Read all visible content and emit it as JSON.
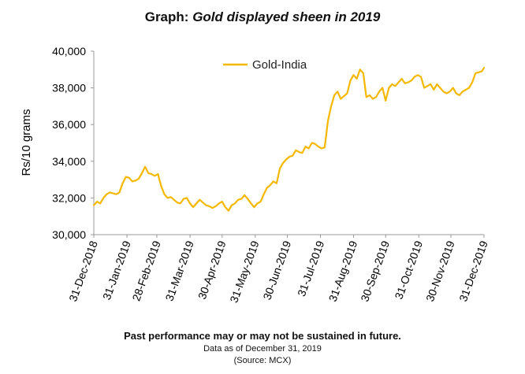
{
  "title": {
    "prefix": "Graph:",
    "emphasis": "Gold displayed sheen in 2019"
  },
  "footer": {
    "disclaimer": "Past performance may or may not be sustained in future.",
    "as_of": "Data as of December 31, 2019",
    "source": "(Source: MCX)"
  },
  "colors": {
    "series": "#F5B800",
    "axis": "#000000"
  },
  "chart_data": {
    "type": "line",
    "title": "Graph: Gold displayed sheen in 2019",
    "xlabel": "",
    "ylabel": "Rs/10 grams",
    "ylim": [
      30000,
      40000
    ],
    "yticks": [
      30000,
      32000,
      34000,
      36000,
      38000,
      40000
    ],
    "ytick_labels": [
      "30,000",
      "32,000",
      "34,000",
      "36,000",
      "38,000",
      "40,000"
    ],
    "xlim": [
      "2018-12-31",
      "2019-12-31"
    ],
    "xtick_labels": [
      "31-Dec-2018",
      "31-Jan-2019",
      "28-Feb-2019",
      "31-Mar-2019",
      "30-Apr-2019",
      "31-May-2019",
      "30-Jun-2019",
      "31-Jul-2019",
      "31-Aug-2019",
      "30-Sep-2019",
      "31-Oct-2019",
      "30-Nov-2019",
      "31-Dec-2019"
    ],
    "xtick_dates": [
      "2018-12-31",
      "2019-01-31",
      "2019-02-28",
      "2019-03-31",
      "2019-04-30",
      "2019-05-31",
      "2019-06-30",
      "2019-07-31",
      "2019-08-31",
      "2019-09-30",
      "2019-10-31",
      "2019-11-30",
      "2019-12-31"
    ],
    "grid": false,
    "legend": "top-center",
    "series": [
      {
        "name": "Gold-India",
        "x": [
          "2018-12-31",
          "2019-01-03",
          "2019-01-06",
          "2019-01-09",
          "2019-01-12",
          "2019-01-15",
          "2019-01-18",
          "2019-01-21",
          "2019-01-24",
          "2019-01-27",
          "2019-01-30",
          "2019-02-02",
          "2019-02-05",
          "2019-02-08",
          "2019-02-11",
          "2019-02-14",
          "2019-02-17",
          "2019-02-20",
          "2019-02-23",
          "2019-02-26",
          "2019-03-01",
          "2019-03-04",
          "2019-03-07",
          "2019-03-10",
          "2019-03-13",
          "2019-03-16",
          "2019-03-19",
          "2019-03-22",
          "2019-03-25",
          "2019-03-28",
          "2019-03-31",
          "2019-04-03",
          "2019-04-06",
          "2019-04-09",
          "2019-04-12",
          "2019-04-15",
          "2019-04-18",
          "2019-04-21",
          "2019-04-24",
          "2019-04-27",
          "2019-04-30",
          "2019-05-03",
          "2019-05-06",
          "2019-05-09",
          "2019-05-12",
          "2019-05-15",
          "2019-05-18",
          "2019-05-21",
          "2019-05-24",
          "2019-05-27",
          "2019-05-30",
          "2019-06-02",
          "2019-06-05",
          "2019-06-08",
          "2019-06-11",
          "2019-06-14",
          "2019-06-17",
          "2019-06-20",
          "2019-06-23",
          "2019-06-26",
          "2019-06-29",
          "2019-07-02",
          "2019-07-05",
          "2019-07-08",
          "2019-07-11",
          "2019-07-14",
          "2019-07-17",
          "2019-07-20",
          "2019-07-23",
          "2019-07-26",
          "2019-07-29",
          "2019-08-01",
          "2019-08-04",
          "2019-08-07",
          "2019-08-10",
          "2019-08-13",
          "2019-08-16",
          "2019-08-19",
          "2019-08-22",
          "2019-08-25",
          "2019-08-28",
          "2019-08-31",
          "2019-09-03",
          "2019-09-06",
          "2019-09-09",
          "2019-09-12",
          "2019-09-15",
          "2019-09-18",
          "2019-09-21",
          "2019-09-24",
          "2019-09-27",
          "2019-09-30",
          "2019-10-03",
          "2019-10-06",
          "2019-10-09",
          "2019-10-12",
          "2019-10-15",
          "2019-10-18",
          "2019-10-21",
          "2019-10-24",
          "2019-10-27",
          "2019-10-30",
          "2019-11-02",
          "2019-11-05",
          "2019-11-08",
          "2019-11-11",
          "2019-11-14",
          "2019-11-17",
          "2019-11-20",
          "2019-11-23",
          "2019-11-26",
          "2019-11-29",
          "2019-12-02",
          "2019-12-05",
          "2019-12-08",
          "2019-12-11",
          "2019-12-14",
          "2019-12-17",
          "2019-12-20",
          "2019-12-23",
          "2019-12-26",
          "2019-12-29",
          "2019-12-31"
        ],
        "values": [
          31600,
          31800,
          31700,
          32000,
          32200,
          32300,
          32250,
          32200,
          32300,
          32800,
          33150,
          33100,
          32900,
          32950,
          33050,
          33350,
          33700,
          33350,
          33300,
          33200,
          33300,
          32650,
          32200,
          32000,
          32050,
          31900,
          31750,
          31700,
          31950,
          32000,
          31700,
          31500,
          31700,
          31900,
          31750,
          31600,
          31550,
          31450,
          31550,
          31700,
          31800,
          31500,
          31300,
          31600,
          31700,
          31900,
          31950,
          32150,
          31950,
          31700,
          31500,
          31700,
          31800,
          32200,
          32550,
          32700,
          32900,
          32800,
          33600,
          33900,
          34100,
          34250,
          34300,
          34600,
          34500,
          34450,
          34800,
          34700,
          35000,
          34950,
          34800,
          34700,
          34750,
          36200,
          37000,
          37600,
          37800,
          37400,
          37550,
          37700,
          38400,
          38700,
          38500,
          39000,
          38800,
          37500,
          37600,
          37400,
          37500,
          37800,
          38000,
          37300,
          38000,
          38200,
          38100,
          38300,
          38500,
          38250,
          38300,
          38400,
          38600,
          38700,
          38600,
          38000,
          38100,
          38200,
          37900,
          38200,
          38000,
          37800,
          37700,
          37800,
          38000,
          37700,
          37600,
          37800,
          37900,
          38000,
          38300,
          38800,
          38850,
          38900,
          39100
        ]
      }
    ]
  }
}
